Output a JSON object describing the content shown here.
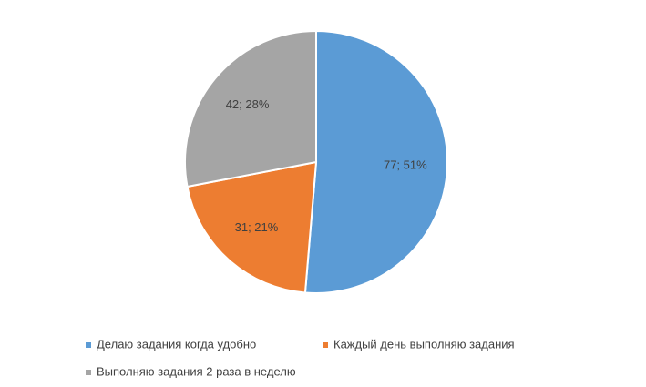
{
  "chart_data": {
    "type": "pie",
    "categories": [
      "Делаю задания когда удобно",
      "Каждый день выполняю задания",
      "Выполняю задания 2 раза в неделю"
    ],
    "values": [
      77,
      31,
      42
    ],
    "value_labels": [
      "77; 51%",
      "31; 21%",
      "42; 28%"
    ],
    "colors": [
      "#5b9bd5",
      "#ed7d31",
      "#a5a5a5"
    ],
    "legend": "bottom"
  }
}
